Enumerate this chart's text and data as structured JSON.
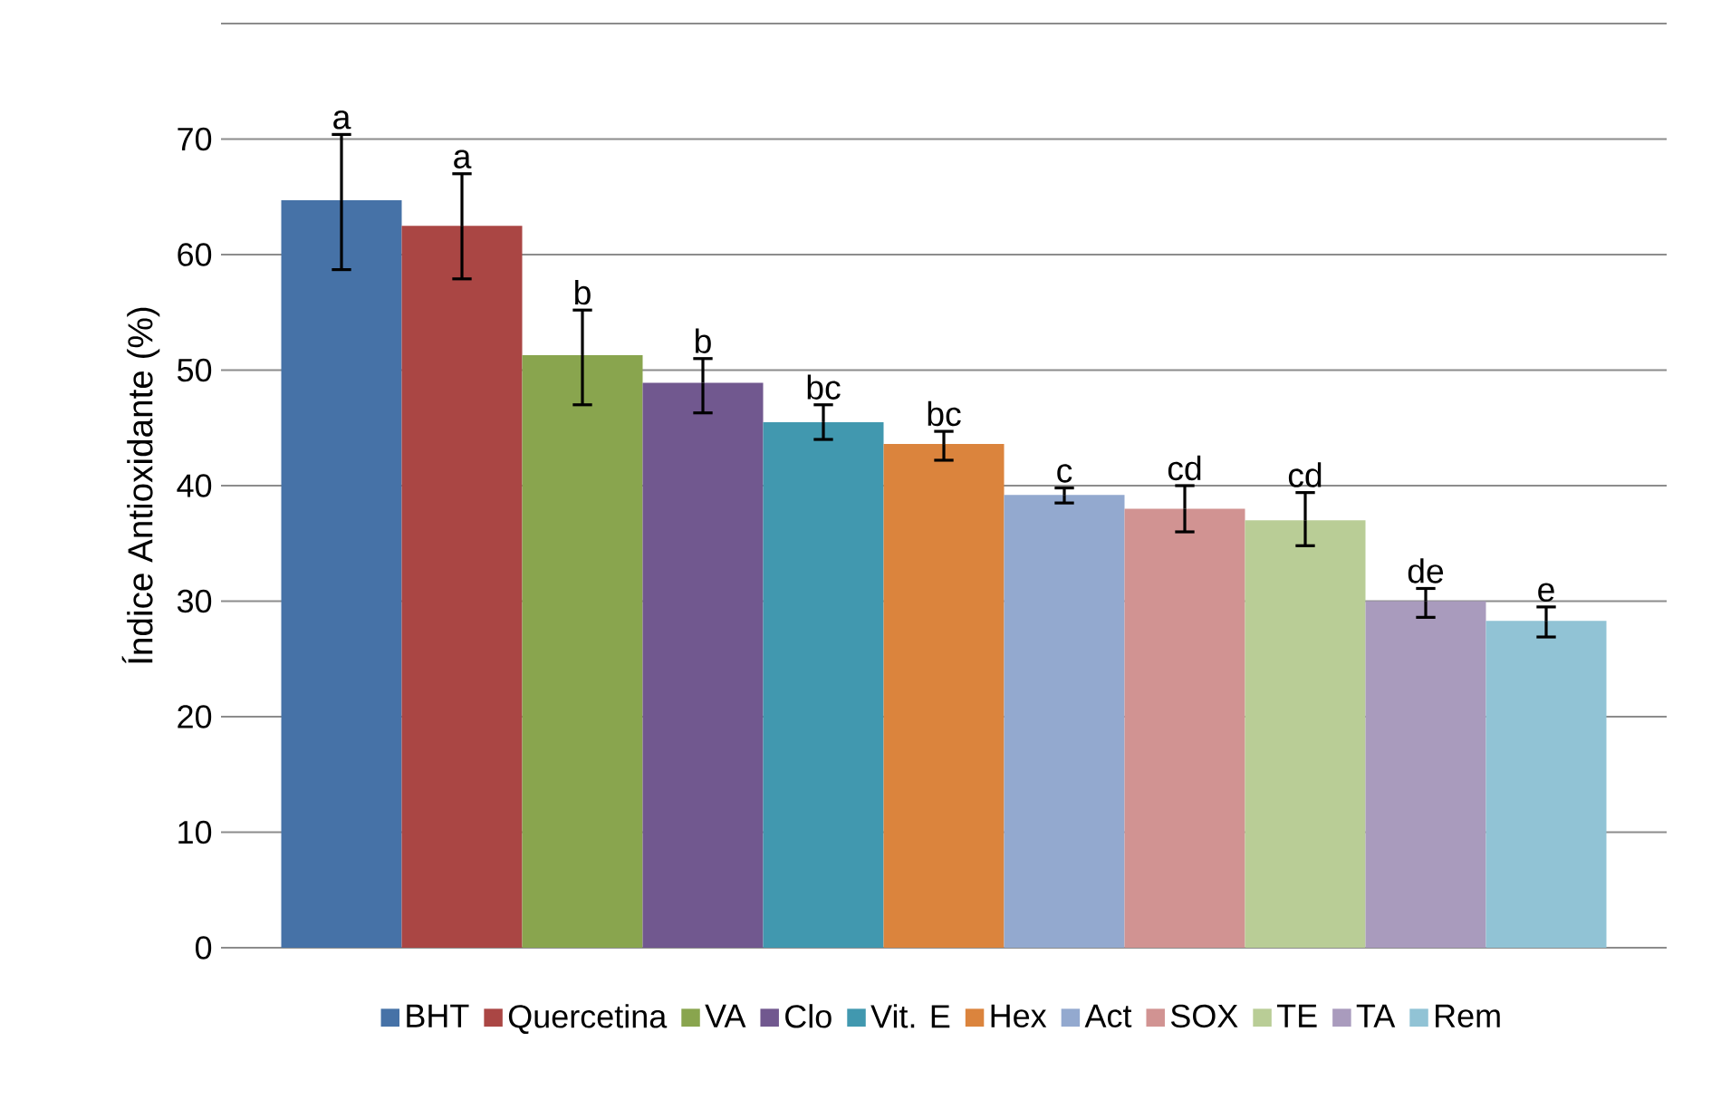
{
  "chart_data": {
    "type": "bar",
    "ylabel": "Índice Antioxidante (%)",
    "categories": [
      null,
      null,
      null,
      null,
      null,
      null,
      null,
      null,
      null,
      null,
      null
    ],
    "series": [
      {
        "name": "BHT",
        "color": "#4672a7",
        "values": [
          64.7,
          null,
          null,
          null,
          null,
          null,
          null,
          null,
          null,
          null,
          null
        ],
        "errors": [
          [
            58.7,
            70.4
          ],
          null,
          null,
          null,
          null,
          null,
          null,
          null,
          null,
          null,
          null
        ]
      },
      {
        "name": "Quercetina",
        "color": "#aa4644",
        "values": [
          null,
          62.5,
          null,
          null,
          null,
          null,
          null,
          null,
          null,
          null,
          null
        ],
        "errors": [
          null,
          [
            57.9,
            67
          ],
          null,
          null,
          null,
          null,
          null,
          null,
          null,
          null,
          null
        ]
      },
      {
        "name": "VA",
        "color": "#89a54e",
        "values": [
          null,
          null,
          51.3,
          null,
          null,
          null,
          null,
          null,
          null,
          null,
          null
        ],
        "errors": [
          null,
          null,
          [
            47,
            55.2
          ],
          null,
          null,
          null,
          null,
          null,
          null,
          null,
          null
        ]
      },
      {
        "name": "Clo",
        "color": "#71588f",
        "values": [
          null,
          null,
          null,
          48.9,
          null,
          null,
          null,
          null,
          null,
          null,
          null
        ],
        "errors": [
          null,
          null,
          null,
          [
            46.3,
            51
          ],
          null,
          null,
          null,
          null,
          null,
          null,
          null
        ]
      },
      {
        "name": "Vit. E",
        "color": "#4198af",
        "values": [
          null,
          null,
          null,
          null,
          45.5,
          null,
          null,
          null,
          null,
          null,
          null
        ],
        "errors": [
          null,
          null,
          null,
          null,
          [
            44,
            47
          ],
          null,
          null,
          null,
          null,
          null,
          null
        ]
      },
      {
        "name": "Hex",
        "color": "#db843d",
        "values": [
          null,
          null,
          null,
          null,
          null,
          43.6,
          null,
          null,
          null,
          null,
          null
        ],
        "errors": [
          null,
          null,
          null,
          null,
          null,
          [
            42.2,
            44.7
          ],
          null,
          null,
          null,
          null,
          null
        ]
      },
      {
        "name": "Act",
        "color": "#93a9cf",
        "values": [
          null,
          null,
          null,
          null,
          null,
          null,
          39.2,
          null,
          null,
          null,
          null
        ],
        "errors": [
          null,
          null,
          null,
          null,
          null,
          null,
          [
            38.5,
            39.8
          ],
          null,
          null,
          null,
          null
        ]
      },
      {
        "name": "SOX",
        "color": "#d19392",
        "values": [
          null,
          null,
          null,
          null,
          null,
          null,
          null,
          38,
          null,
          null,
          null
        ],
        "errors": [
          null,
          null,
          null,
          null,
          null,
          null,
          null,
          [
            36,
            40
          ],
          null,
          null,
          null
        ]
      },
      {
        "name": "TE",
        "color": "#b9cd96",
        "values": [
          null,
          null,
          null,
          null,
          null,
          null,
          null,
          null,
          37,
          null,
          null
        ],
        "errors": [
          null,
          null,
          null,
          null,
          null,
          null,
          null,
          null,
          [
            34.8,
            39.4
          ],
          null,
          null
        ]
      },
      {
        "name": "TA",
        "color": "#a99bbd",
        "values": [
          null,
          null,
          null,
          null,
          null,
          null,
          null,
          null,
          null,
          30,
          null
        ],
        "errors": [
          null,
          null,
          null,
          null,
          null,
          null,
          null,
          null,
          null,
          [
            28.6,
            31.1
          ],
          null
        ]
      },
      {
        "name": "Rem",
        "color": "#91c3d5",
        "values": [
          null,
          null,
          null,
          null,
          null,
          null,
          null,
          null,
          null,
          null,
          28.3
        ],
        "errors": [
          null,
          null,
          null,
          null,
          null,
          null,
          null,
          null,
          null,
          null,
          [
            26.9,
            29.5
          ]
        ]
      }
    ],
    "annotations": [
      "a",
      "a",
      "b",
      "b",
      "bc",
      "bc",
      "c",
      "cd",
      "cd",
      "de",
      "e"
    ],
    "ylim": [
      0,
      80
    ],
    "yticks": [
      0,
      10,
      20,
      30,
      40,
      50,
      60,
      70,
      {
        "value": 80,
        "label": null
      }
    ],
    "tick_labels": "y",
    "grid": "y",
    "legend": "bottom"
  }
}
